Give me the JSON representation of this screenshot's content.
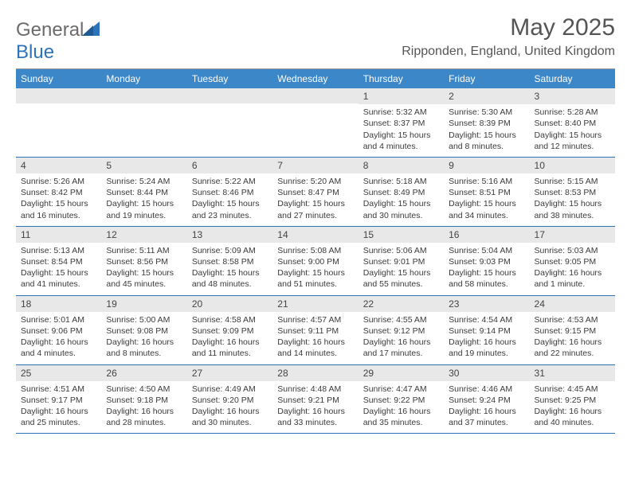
{
  "logo": {
    "text1": "General",
    "text2": "Blue"
  },
  "title": "May 2025",
  "location": "Ripponden, England, United Kingdom",
  "colors": {
    "header_bg": "#3b87c8",
    "header_text": "#ffffff",
    "daynum_bg": "#e8e8e8",
    "row_border": "#2d73b8",
    "logo_gray": "#6b6b6b",
    "logo_blue": "#2d73b8"
  },
  "day_names": [
    "Sunday",
    "Monday",
    "Tuesday",
    "Wednesday",
    "Thursday",
    "Friday",
    "Saturday"
  ],
  "weeks": [
    [
      null,
      null,
      null,
      null,
      {
        "n": "1",
        "sr": "Sunrise: 5:32 AM",
        "ss": "Sunset: 8:37 PM",
        "dl": "Daylight: 15 hours and 4 minutes."
      },
      {
        "n": "2",
        "sr": "Sunrise: 5:30 AM",
        "ss": "Sunset: 8:39 PM",
        "dl": "Daylight: 15 hours and 8 minutes."
      },
      {
        "n": "3",
        "sr": "Sunrise: 5:28 AM",
        "ss": "Sunset: 8:40 PM",
        "dl": "Daylight: 15 hours and 12 minutes."
      }
    ],
    [
      {
        "n": "4",
        "sr": "Sunrise: 5:26 AM",
        "ss": "Sunset: 8:42 PM",
        "dl": "Daylight: 15 hours and 16 minutes."
      },
      {
        "n": "5",
        "sr": "Sunrise: 5:24 AM",
        "ss": "Sunset: 8:44 PM",
        "dl": "Daylight: 15 hours and 19 minutes."
      },
      {
        "n": "6",
        "sr": "Sunrise: 5:22 AM",
        "ss": "Sunset: 8:46 PM",
        "dl": "Daylight: 15 hours and 23 minutes."
      },
      {
        "n": "7",
        "sr": "Sunrise: 5:20 AM",
        "ss": "Sunset: 8:47 PM",
        "dl": "Daylight: 15 hours and 27 minutes."
      },
      {
        "n": "8",
        "sr": "Sunrise: 5:18 AM",
        "ss": "Sunset: 8:49 PM",
        "dl": "Daylight: 15 hours and 30 minutes."
      },
      {
        "n": "9",
        "sr": "Sunrise: 5:16 AM",
        "ss": "Sunset: 8:51 PM",
        "dl": "Daylight: 15 hours and 34 minutes."
      },
      {
        "n": "10",
        "sr": "Sunrise: 5:15 AM",
        "ss": "Sunset: 8:53 PM",
        "dl": "Daylight: 15 hours and 38 minutes."
      }
    ],
    [
      {
        "n": "11",
        "sr": "Sunrise: 5:13 AM",
        "ss": "Sunset: 8:54 PM",
        "dl": "Daylight: 15 hours and 41 minutes."
      },
      {
        "n": "12",
        "sr": "Sunrise: 5:11 AM",
        "ss": "Sunset: 8:56 PM",
        "dl": "Daylight: 15 hours and 45 minutes."
      },
      {
        "n": "13",
        "sr": "Sunrise: 5:09 AM",
        "ss": "Sunset: 8:58 PM",
        "dl": "Daylight: 15 hours and 48 minutes."
      },
      {
        "n": "14",
        "sr": "Sunrise: 5:08 AM",
        "ss": "Sunset: 9:00 PM",
        "dl": "Daylight: 15 hours and 51 minutes."
      },
      {
        "n": "15",
        "sr": "Sunrise: 5:06 AM",
        "ss": "Sunset: 9:01 PM",
        "dl": "Daylight: 15 hours and 55 minutes."
      },
      {
        "n": "16",
        "sr": "Sunrise: 5:04 AM",
        "ss": "Sunset: 9:03 PM",
        "dl": "Daylight: 15 hours and 58 minutes."
      },
      {
        "n": "17",
        "sr": "Sunrise: 5:03 AM",
        "ss": "Sunset: 9:05 PM",
        "dl": "Daylight: 16 hours and 1 minute."
      }
    ],
    [
      {
        "n": "18",
        "sr": "Sunrise: 5:01 AM",
        "ss": "Sunset: 9:06 PM",
        "dl": "Daylight: 16 hours and 4 minutes."
      },
      {
        "n": "19",
        "sr": "Sunrise: 5:00 AM",
        "ss": "Sunset: 9:08 PM",
        "dl": "Daylight: 16 hours and 8 minutes."
      },
      {
        "n": "20",
        "sr": "Sunrise: 4:58 AM",
        "ss": "Sunset: 9:09 PM",
        "dl": "Daylight: 16 hours and 11 minutes."
      },
      {
        "n": "21",
        "sr": "Sunrise: 4:57 AM",
        "ss": "Sunset: 9:11 PM",
        "dl": "Daylight: 16 hours and 14 minutes."
      },
      {
        "n": "22",
        "sr": "Sunrise: 4:55 AM",
        "ss": "Sunset: 9:12 PM",
        "dl": "Daylight: 16 hours and 17 minutes."
      },
      {
        "n": "23",
        "sr": "Sunrise: 4:54 AM",
        "ss": "Sunset: 9:14 PM",
        "dl": "Daylight: 16 hours and 19 minutes."
      },
      {
        "n": "24",
        "sr": "Sunrise: 4:53 AM",
        "ss": "Sunset: 9:15 PM",
        "dl": "Daylight: 16 hours and 22 minutes."
      }
    ],
    [
      {
        "n": "25",
        "sr": "Sunrise: 4:51 AM",
        "ss": "Sunset: 9:17 PM",
        "dl": "Daylight: 16 hours and 25 minutes."
      },
      {
        "n": "26",
        "sr": "Sunrise: 4:50 AM",
        "ss": "Sunset: 9:18 PM",
        "dl": "Daylight: 16 hours and 28 minutes."
      },
      {
        "n": "27",
        "sr": "Sunrise: 4:49 AM",
        "ss": "Sunset: 9:20 PM",
        "dl": "Daylight: 16 hours and 30 minutes."
      },
      {
        "n": "28",
        "sr": "Sunrise: 4:48 AM",
        "ss": "Sunset: 9:21 PM",
        "dl": "Daylight: 16 hours and 33 minutes."
      },
      {
        "n": "29",
        "sr": "Sunrise: 4:47 AM",
        "ss": "Sunset: 9:22 PM",
        "dl": "Daylight: 16 hours and 35 minutes."
      },
      {
        "n": "30",
        "sr": "Sunrise: 4:46 AM",
        "ss": "Sunset: 9:24 PM",
        "dl": "Daylight: 16 hours and 37 minutes."
      },
      {
        "n": "31",
        "sr": "Sunrise: 4:45 AM",
        "ss": "Sunset: 9:25 PM",
        "dl": "Daylight: 16 hours and 40 minutes."
      }
    ]
  ]
}
